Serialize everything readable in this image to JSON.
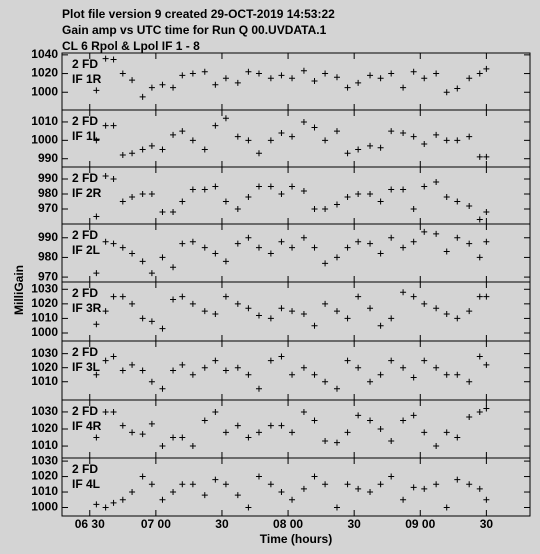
{
  "header": [
    "Plot file version 9  created 29-OCT-2019 14:53:22",
    "Gain amp vs UTC time for Run Q 00.UVDATA.1",
    "CL 6  Rpol & Lpol  IF 1 - 8"
  ],
  "xlabel": "Time (hours)",
  "ylabel": "MilliGain",
  "x_axis": {
    "xlim": [
      6.29,
      9.83
    ],
    "xticks": [
      {
        "value": 6.5,
        "label": "06 30"
      },
      {
        "value": 7,
        "label": "07 00"
      },
      {
        "value": 7.5,
        "label": "30"
      },
      {
        "value": 8,
        "label": "08 00"
      },
      {
        "value": 8.5,
        "label": "30"
      },
      {
        "value": 9,
        "label": "09 00"
      },
      {
        "value": 9.5,
        "label": "30"
      }
    ]
  },
  "chart_data": [
    {
      "type": "scatter",
      "source": "2 FD",
      "label": "IF 1R",
      "ylim": [
        981,
        1042
      ],
      "yticks": [
        1000,
        1020,
        1040
      ],
      "x": [
        6.55,
        6.62,
        6.68,
        6.75,
        6.82,
        6.9,
        6.97,
        7.05,
        7.13,
        7.2,
        7.28,
        7.37,
        7.45,
        7.53,
        7.62,
        7.7,
        7.78,
        7.87,
        7.95,
        8.03,
        8.12,
        8.2,
        8.28,
        8.37,
        8.45,
        8.53,
        8.62,
        8.7,
        8.78,
        8.87,
        8.95,
        9.03,
        9.12,
        9.2,
        9.28,
        9.37,
        9.45,
        9.5
      ],
      "values": [
        1002,
        1036,
        1035,
        1020,
        1013,
        995,
        1005,
        1008,
        1005,
        1018,
        1020,
        1022,
        1008,
        1015,
        1010,
        1022,
        1020,
        1015,
        1018,
        1015,
        1023,
        1012,
        1020,
        1016,
        1005,
        1010,
        1018,
        1015,
        1020,
        1005,
        1022,
        1015,
        1020,
        1000,
        1004,
        1015,
        1020,
        1025
      ]
    },
    {
      "type": "scatter",
      "source": "2 FD",
      "label": "IF 1L",
      "ylim": [
        985.5,
        1016.5
      ],
      "yticks": [
        990,
        1000,
        1010
      ],
      "x": [
        6.55,
        6.62,
        6.68,
        6.75,
        6.82,
        6.9,
        6.97,
        7.05,
        7.13,
        7.2,
        7.28,
        7.37,
        7.45,
        7.53,
        7.62,
        7.7,
        7.78,
        7.87,
        7.95,
        8.03,
        8.12,
        8.2,
        8.28,
        8.37,
        8.45,
        8.53,
        8.62,
        8.7,
        8.78,
        8.87,
        8.95,
        9.03,
        9.12,
        9.2,
        9.28,
        9.37,
        9.45,
        9.5
      ],
      "values": [
        1000,
        1008,
        1008,
        992,
        993,
        995,
        997,
        995,
        1003,
        1005,
        1000,
        995,
        1008,
        1012,
        1002,
        1000,
        993,
        1000,
        1004,
        1002,
        1010,
        1007,
        1000,
        1005,
        993,
        995,
        997,
        996,
        1005,
        1004,
        1002,
        998,
        1003,
        1000,
        1000,
        1002,
        991,
        991
      ]
    },
    {
      "type": "scatter",
      "source": "2 FD",
      "label": "IF 2R",
      "ylim": [
        960,
        998
      ],
      "yticks": [
        970,
        980,
        990
      ],
      "x": [
        6.55,
        6.62,
        6.68,
        6.75,
        6.82,
        6.9,
        6.97,
        7.05,
        7.13,
        7.2,
        7.28,
        7.37,
        7.45,
        7.53,
        7.62,
        7.7,
        7.78,
        7.87,
        7.95,
        8.03,
        8.12,
        8.2,
        8.28,
        8.37,
        8.45,
        8.53,
        8.62,
        8.7,
        8.78,
        8.87,
        8.95,
        9.03,
        9.12,
        9.2,
        9.28,
        9.37,
        9.45,
        9.5
      ],
      "values": [
        965,
        992,
        990,
        975,
        978,
        980,
        980,
        968,
        968,
        975,
        983,
        983,
        985,
        975,
        970,
        978,
        985,
        985,
        980,
        985,
        982,
        970,
        970,
        973,
        978,
        980,
        980,
        975,
        983,
        983,
        970,
        985,
        988,
        978,
        975,
        972,
        963,
        968
      ]
    },
    {
      "type": "scatter",
      "source": "2 FD",
      "label": "IF 2L",
      "ylim": [
        967.5,
        997
      ],
      "yticks": [
        970,
        980,
        990
      ],
      "x": [
        6.55,
        6.62,
        6.68,
        6.75,
        6.82,
        6.9,
        6.97,
        7.05,
        7.13,
        7.2,
        7.28,
        7.37,
        7.45,
        7.53,
        7.62,
        7.7,
        7.78,
        7.87,
        7.95,
        8.03,
        8.12,
        8.2,
        8.28,
        8.37,
        8.45,
        8.53,
        8.62,
        8.7,
        8.78,
        8.87,
        8.95,
        9.03,
        9.12,
        9.2,
        9.28,
        9.37,
        9.45,
        9.5
      ],
      "values": [
        972,
        988,
        987,
        985,
        982,
        978,
        972,
        980,
        975,
        987,
        988,
        985,
        982,
        978,
        987,
        990,
        985,
        982,
        988,
        985,
        990,
        985,
        977,
        980,
        985,
        988,
        987,
        982,
        990,
        985,
        988,
        993,
        992,
        983,
        990,
        987,
        980,
        988
      ]
    },
    {
      "type": "scatter",
      "source": "2 FD",
      "label": "IF 3R",
      "ylim": [
        994.5,
        1035
      ],
      "yticks": [
        1000,
        1010,
        1020,
        1030
      ],
      "x": [
        6.55,
        6.62,
        6.68,
        6.75,
        6.82,
        6.9,
        6.97,
        7.05,
        7.13,
        7.2,
        7.28,
        7.37,
        7.45,
        7.53,
        7.62,
        7.7,
        7.78,
        7.87,
        7.95,
        8.03,
        8.12,
        8.2,
        8.28,
        8.37,
        8.45,
        8.53,
        8.62,
        8.7,
        8.78,
        8.87,
        8.95,
        9.03,
        9.12,
        9.2,
        9.28,
        9.37,
        9.45,
        9.5
      ],
      "values": [
        1006,
        1015,
        1025,
        1025,
        1020,
        1010,
        1008,
        1003,
        1023,
        1025,
        1020,
        1015,
        1013,
        1025,
        1020,
        1017,
        1012,
        1010,
        1017,
        1015,
        1013,
        1005,
        1020,
        1015,
        1010,
        1025,
        1017,
        1005,
        1010,
        1028,
        1025,
        1020,
        1017,
        1013,
        1010,
        1015,
        1025,
        1025
      ]
    },
    {
      "type": "scatter",
      "source": "2 FD",
      "label": "IF 3L",
      "ylim": [
        997,
        1039
      ],
      "yticks": [
        1010,
        1020,
        1030
      ],
      "x": [
        6.55,
        6.62,
        6.68,
        6.75,
        6.82,
        6.9,
        6.97,
        7.05,
        7.13,
        7.2,
        7.28,
        7.37,
        7.45,
        7.53,
        7.62,
        7.7,
        7.78,
        7.87,
        7.95,
        8.03,
        8.12,
        8.2,
        8.28,
        8.37,
        8.45,
        8.53,
        8.62,
        8.7,
        8.78,
        8.87,
        8.95,
        9.03,
        9.12,
        9.2,
        9.28,
        9.37,
        9.45,
        9.5
      ],
      "values": [
        1015,
        1025,
        1028,
        1018,
        1022,
        1018,
        1010,
        1005,
        1018,
        1022,
        1015,
        1020,
        1025,
        1018,
        1020,
        1015,
        1005,
        1025,
        1028,
        1015,
        1020,
        1015,
        1010,
        1005,
        1025,
        1020,
        1010,
        1015,
        1025,
        1020,
        1013,
        1025,
        1020,
        1015,
        1015,
        1010,
        1028,
        1022
      ]
    },
    {
      "type": "scatter",
      "source": "2 FD",
      "label": "IF 4R",
      "ylim": [
        1003,
        1037
      ],
      "yticks": [
        1010,
        1020,
        1030
      ],
      "x": [
        6.55,
        6.62,
        6.68,
        6.75,
        6.82,
        6.9,
        6.97,
        7.05,
        7.13,
        7.2,
        7.28,
        7.37,
        7.45,
        7.53,
        7.62,
        7.7,
        7.78,
        7.87,
        7.95,
        8.03,
        8.12,
        8.2,
        8.28,
        8.37,
        8.45,
        8.53,
        8.62,
        8.7,
        8.78,
        8.87,
        8.95,
        9.03,
        9.12,
        9.2,
        9.28,
        9.37,
        9.45,
        9.5
      ],
      "values": [
        1015,
        1030,
        1030,
        1022,
        1018,
        1017,
        1023,
        1010,
        1015,
        1015,
        1010,
        1025,
        1030,
        1018,
        1022,
        1015,
        1018,
        1022,
        1022,
        1018,
        1030,
        1025,
        1013,
        1012,
        1018,
        1028,
        1025,
        1020,
        1013,
        1025,
        1028,
        1018,
        1010,
        1018,
        1015,
        1027,
        1030,
        1032
      ]
    },
    {
      "type": "scatter",
      "source": "2 FD",
      "label": "IF 4L",
      "ylim": [
        994.5,
        1032
      ],
      "yticks": [
        1000,
        1010,
        1020,
        1030
      ],
      "x": [
        6.55,
        6.62,
        6.68,
        6.75,
        6.82,
        6.9,
        6.97,
        7.05,
        7.13,
        7.2,
        7.28,
        7.37,
        7.45,
        7.53,
        7.62,
        7.7,
        7.78,
        7.87,
        7.95,
        8.03,
        8.12,
        8.2,
        8.28,
        8.37,
        8.45,
        8.53,
        8.62,
        8.7,
        8.78,
        8.87,
        8.95,
        9.03,
        9.12,
        9.2,
        9.28,
        9.37,
        9.45,
        9.5
      ],
      "values": [
        1002,
        1000,
        1003,
        1005,
        1010,
        1020,
        1015,
        1005,
        1010,
        1015,
        1015,
        1008,
        1018,
        1015,
        1008,
        1000,
        1020,
        1015,
        1010,
        1005,
        1012,
        1020,
        1015,
        1000,
        1015,
        1012,
        1010,
        1015,
        1020,
        1005,
        1013,
        1012,
        1015,
        1000,
        1018,
        1015,
        1012,
        1005
      ]
    }
  ]
}
